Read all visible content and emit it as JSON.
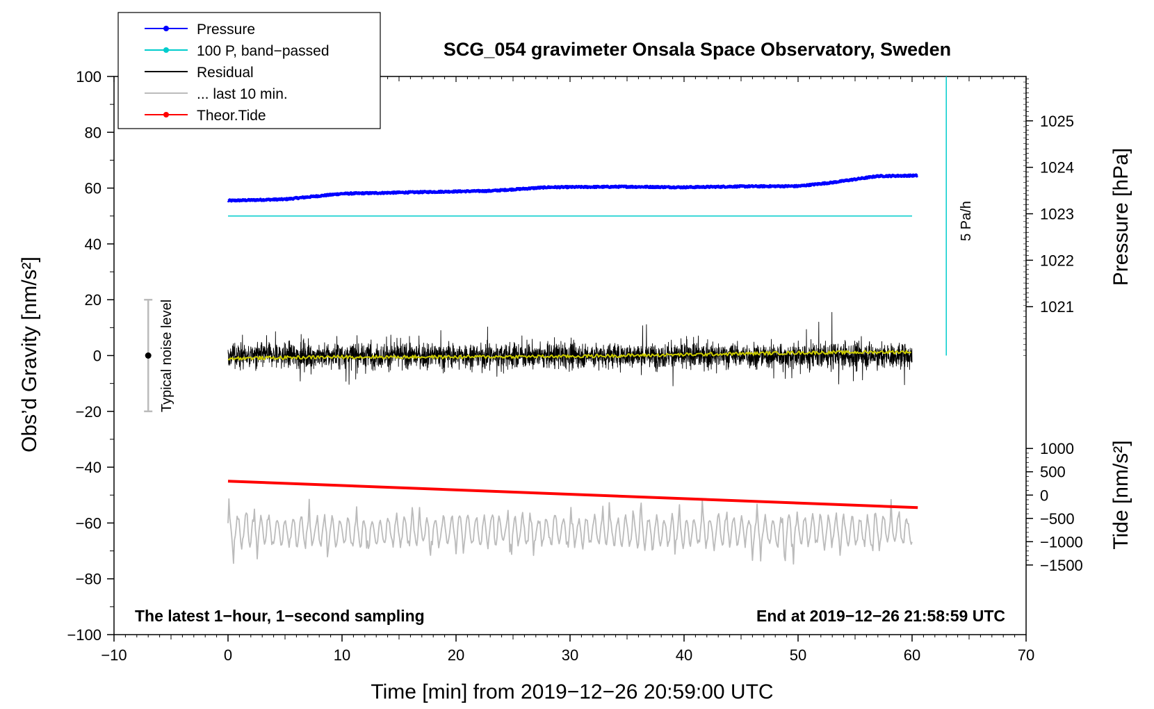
{
  "chart_data": {
    "type": "line",
    "title": "SCG_054 gravimeter Onsala Space Observatory, Sweden",
    "xlabel": "Time [min] from 2019−12−26 20:59:00 UTC",
    "ylabel": "Obs’d Gravity [nm/s²]",
    "ylabel_right_top": "Pressure [hPa]",
    "ylabel_right_bottom": "Tide [nm/s²]",
    "xlim": [
      -10,
      70
    ],
    "ylim": [
      -100,
      100
    ],
    "x_ticks": [
      -10,
      0,
      10,
      20,
      30,
      40,
      50,
      60,
      70
    ],
    "x_tick_labels": [
      "−10",
      "0",
      "10",
      "20",
      "30",
      "40",
      "50",
      "60",
      "70"
    ],
    "y_ticks": [
      -100,
      -80,
      -60,
      -40,
      -20,
      0,
      20,
      40,
      60,
      80,
      100
    ],
    "y_tick_labels": [
      "−100",
      "−80",
      "−60",
      "−40",
      "−20",
      "0",
      "20",
      "40",
      "60",
      "80",
      "100"
    ],
    "pressure_axis": {
      "ticks": [
        1021,
        1022,
        1023,
        1024,
        1025
      ],
      "tick_labels": [
        "1021",
        "1022",
        "1023",
        "1024",
        "1025"
      ],
      "gravity_at_1021": 17.5,
      "gravity_per_hpa": 16.65
    },
    "tide_axis": {
      "ticks": [
        -1500,
        -1000,
        -500,
        0,
        500,
        1000
      ],
      "tick_labels": [
        "−1500",
        "−1000",
        "−500",
        "0",
        "500",
        "1000"
      ],
      "gravity_at_0": -50,
      "gravity_per_1000": 16.7
    },
    "legend": {
      "position": "top-left",
      "entries": [
        {
          "label": "Pressure",
          "color": "#0000ff",
          "marker": true
        },
        {
          "label": "100 P, band−passed",
          "color": "#00cccc",
          "marker": true
        },
        {
          "label": "Residual",
          "color": "#000000",
          "marker": false
        },
        {
          "label": "... last 10 min.",
          "color": "#bbbbbb",
          "marker": false
        },
        {
          "label": "Theor.Tide",
          "color": "#ff0000",
          "marker": true
        }
      ]
    },
    "series": [
      {
        "name": "Pressure",
        "color": "#0000ff",
        "x": [
          0,
          5,
          10,
          20,
          23,
          28,
          35,
          40,
          45,
          50,
          53,
          57,
          60.5
        ],
        "y": [
          55.5,
          56,
          58,
          58.8,
          59,
          60.3,
          60.5,
          60.3,
          60.6,
          60.7,
          62,
          64.3,
          64.5
        ]
      },
      {
        "name": "100 P, band-passed",
        "color": "#00cccc",
        "x": [
          0,
          60
        ],
        "y": [
          50,
          50
        ]
      },
      {
        "name": "Residual",
        "color": "#000000",
        "x_range": [
          0,
          60
        ],
        "amplitude": 8,
        "note": "1-second sampling noise around zero"
      },
      {
        "name": "Residual smoothed",
        "color": "#cccc00",
        "x": [
          0,
          10,
          20,
          30,
          40,
          50,
          60
        ],
        "y": [
          -1,
          -0.5,
          -0.5,
          -0.3,
          0.3,
          1,
          1.3
        ]
      },
      {
        "name": "... last 10 min.",
        "color": "#bbbbbb",
        "x_range": [
          0,
          60
        ],
        "center": -63,
        "amplitude": 8
      },
      {
        "name": "Theor.Tide",
        "color": "#ff0000",
        "x": [
          0,
          60.5
        ],
        "y": [
          -45,
          -54.5
        ]
      },
      {
        "name": "5 Pa/h",
        "color": "#00cccc",
        "x": [
          63,
          63
        ],
        "y": [
          0,
          100
        ]
      }
    ],
    "annotations": {
      "noise_label": "Typical noise level",
      "noise_bar": {
        "x": -7,
        "y_low": -20,
        "y_high": 20,
        "y_center": 0
      },
      "rate_label": "5 Pa/h",
      "bottom_left": "The latest 1−hour, 1−second sampling",
      "bottom_right": "End at 2019−12−26 21:58:59 UTC"
    }
  }
}
